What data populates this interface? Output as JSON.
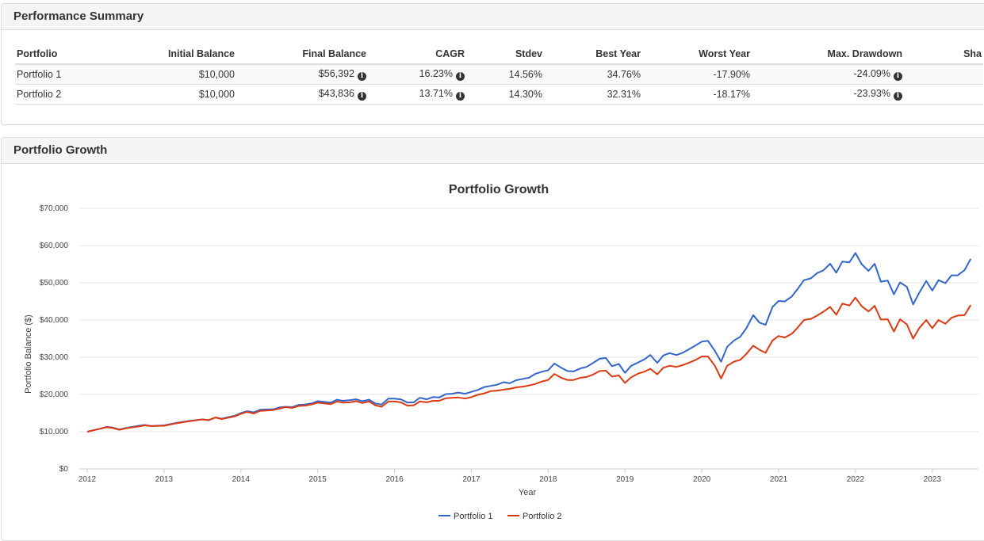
{
  "summary": {
    "title": "Performance Summary",
    "columns": [
      "Portfolio",
      "Initial Balance",
      "Final Balance",
      "CAGR",
      "Stdev",
      "Best Year",
      "Worst Year",
      "Max. Drawdown",
      "Sha"
    ],
    "rows": [
      {
        "portfolio": "Portfolio 1",
        "initial": "$10,000",
        "final": "$56,392",
        "cagr": "16.23%",
        "stdev": "14.56%",
        "best": "34.76%",
        "worst": "-17.90%",
        "drawdown": "-24.09%"
      },
      {
        "portfolio": "Portfolio 2",
        "initial": "$10,000",
        "final": "$43,836",
        "cagr": "13.71%",
        "stdev": "14.30%",
        "best": "32.31%",
        "worst": "-18.17%",
        "drawdown": "-23.93%"
      }
    ],
    "info_icon": "info-circle-icon"
  },
  "growth": {
    "title": "Portfolio Growth"
  },
  "colors": {
    "portfolio1": "#3366cc",
    "portfolio2": "#dc3912",
    "grid": "#e6e6e6"
  },
  "chart_data": {
    "type": "line",
    "title": "Portfolio Growth",
    "xlabel": "Year",
    "ylabel": "Portfolio Balance ($)",
    "ylim": [
      0,
      70000
    ],
    "yticks": [
      0,
      10000,
      20000,
      30000,
      40000,
      50000,
      60000,
      70000
    ],
    "ytick_labels": [
      "$0",
      "$10,000",
      "$20,000",
      "$30,000",
      "$40,000",
      "$50,000",
      "$60,000",
      "$70,000"
    ],
    "xlim": [
      2012,
      2023.58
    ],
    "xticks": [
      2012,
      2013,
      2014,
      2015,
      2016,
      2017,
      2018,
      2019,
      2020,
      2021,
      2022,
      2023
    ],
    "xtick_labels": [
      "2012",
      "2013",
      "2014",
      "2015",
      "2016",
      "2017",
      "2018",
      "2019",
      "2020",
      "2021",
      "2022",
      "2023"
    ],
    "legend_position": "bottom-center",
    "series": [
      {
        "name": "Portfolio 1",
        "points": [
          [
            2012,
            10000
          ],
          [
            2012.17,
            10800
          ],
          [
            2012.25,
            11300
          ],
          [
            2012.33,
            11100
          ],
          [
            2012.42,
            10600
          ],
          [
            2012.5,
            11000
          ],
          [
            2012.67,
            11600
          ],
          [
            2012.75,
            11800
          ],
          [
            2012.83,
            11500
          ],
          [
            2013,
            11700
          ],
          [
            2013.17,
            12400
          ],
          [
            2013.33,
            12900
          ],
          [
            2013.5,
            13300
          ],
          [
            2013.58,
            13100
          ],
          [
            2013.67,
            13800
          ],
          [
            2013.75,
            13500
          ],
          [
            2013.92,
            14300
          ],
          [
            2014,
            15000
          ],
          [
            2014.08,
            15500
          ],
          [
            2014.17,
            15200
          ],
          [
            2014.25,
            15900
          ],
          [
            2014.42,
            16000
          ],
          [
            2014.5,
            16500
          ],
          [
            2014.58,
            16700
          ],
          [
            2014.67,
            16600
          ],
          [
            2014.75,
            17200
          ],
          [
            2014.83,
            17300
          ],
          [
            2014.92,
            17600
          ],
          [
            2015,
            18200
          ],
          [
            2015.08,
            18000
          ],
          [
            2015.17,
            17800
          ],
          [
            2015.25,
            18600
          ],
          [
            2015.33,
            18300
          ],
          [
            2015.42,
            18500
          ],
          [
            2015.5,
            18700
          ],
          [
            2015.58,
            18200
          ],
          [
            2015.67,
            18600
          ],
          [
            2015.75,
            17600
          ],
          [
            2015.83,
            17300
          ],
          [
            2015.92,
            18900
          ],
          [
            2016,
            18900
          ],
          [
            2016.08,
            18700
          ],
          [
            2016.17,
            17800
          ],
          [
            2016.25,
            17900
          ],
          [
            2016.33,
            19100
          ],
          [
            2016.42,
            18700
          ],
          [
            2016.5,
            19300
          ],
          [
            2016.58,
            19200
          ],
          [
            2016.67,
            20100
          ],
          [
            2016.75,
            20200
          ],
          [
            2016.83,
            20500
          ],
          [
            2016.92,
            20200
          ],
          [
            2017,
            20700
          ],
          [
            2017.08,
            21200
          ],
          [
            2017.17,
            22000
          ],
          [
            2017.25,
            22300
          ],
          [
            2017.33,
            22600
          ],
          [
            2017.42,
            23300
          ],
          [
            2017.5,
            23000
          ],
          [
            2017.58,
            23800
          ],
          [
            2017.67,
            24200
          ],
          [
            2017.75,
            24500
          ],
          [
            2017.83,
            25500
          ],
          [
            2017.92,
            26100
          ],
          [
            2018,
            26500
          ],
          [
            2018.08,
            28300
          ],
          [
            2018.17,
            27200
          ],
          [
            2018.25,
            26300
          ],
          [
            2018.33,
            26200
          ],
          [
            2018.42,
            27000
          ],
          [
            2018.5,
            27400
          ],
          [
            2018.58,
            28400
          ],
          [
            2018.67,
            29600
          ],
          [
            2018.75,
            29800
          ],
          [
            2018.83,
            27600
          ],
          [
            2018.92,
            28200
          ],
          [
            2019,
            25800
          ],
          [
            2019.08,
            27700
          ],
          [
            2019.17,
            28600
          ],
          [
            2019.25,
            29400
          ],
          [
            2019.33,
            30600
          ],
          [
            2019.42,
            28500
          ],
          [
            2019.5,
            30500
          ],
          [
            2019.58,
            31100
          ],
          [
            2019.67,
            30600
          ],
          [
            2019.75,
            31200
          ],
          [
            2019.83,
            32100
          ],
          [
            2019.92,
            33200
          ],
          [
            2020,
            34200
          ],
          [
            2020.08,
            34400
          ],
          [
            2020.17,
            31700
          ],
          [
            2020.25,
            28800
          ],
          [
            2020.33,
            32800
          ],
          [
            2020.42,
            34500
          ],
          [
            2020.5,
            35500
          ],
          [
            2020.58,
            37800
          ],
          [
            2020.67,
            41300
          ],
          [
            2020.75,
            39300
          ],
          [
            2020.83,
            38700
          ],
          [
            2020.92,
            43500
          ],
          [
            2021,
            45100
          ],
          [
            2021.08,
            45000
          ],
          [
            2021.17,
            46300
          ],
          [
            2021.25,
            48400
          ],
          [
            2021.33,
            50700
          ],
          [
            2021.42,
            51200
          ],
          [
            2021.5,
            52600
          ],
          [
            2021.58,
            53300
          ],
          [
            2021.67,
            55100
          ],
          [
            2021.75,
            52700
          ],
          [
            2021.83,
            55700
          ],
          [
            2021.92,
            55500
          ],
          [
            2022,
            58000
          ],
          [
            2022.08,
            55000
          ],
          [
            2022.17,
            53200
          ],
          [
            2022.25,
            55100
          ],
          [
            2022.33,
            50300
          ],
          [
            2022.42,
            50600
          ],
          [
            2022.5,
            46900
          ],
          [
            2022.58,
            50100
          ],
          [
            2022.67,
            48900
          ],
          [
            2022.75,
            44200
          ],
          [
            2022.83,
            47300
          ],
          [
            2022.92,
            50500
          ],
          [
            2023,
            47900
          ],
          [
            2023.08,
            50700
          ],
          [
            2023.17,
            49900
          ],
          [
            2023.25,
            52000
          ],
          [
            2023.33,
            52000
          ],
          [
            2023.42,
            53400
          ],
          [
            2023.5,
            56400
          ]
        ]
      },
      {
        "name": "Portfolio 2",
        "points": [
          [
            2012,
            10000
          ],
          [
            2012.17,
            10800
          ],
          [
            2012.25,
            11200
          ],
          [
            2012.33,
            11000
          ],
          [
            2012.42,
            10500
          ],
          [
            2012.5,
            10900
          ],
          [
            2012.67,
            11400
          ],
          [
            2012.75,
            11700
          ],
          [
            2012.83,
            11500
          ],
          [
            2013,
            11600
          ],
          [
            2013.17,
            12300
          ],
          [
            2013.33,
            12800
          ],
          [
            2013.5,
            13300
          ],
          [
            2013.58,
            13100
          ],
          [
            2013.67,
            13800
          ],
          [
            2013.75,
            13400
          ],
          [
            2013.92,
            14100
          ],
          [
            2014,
            14800
          ],
          [
            2014.08,
            15300
          ],
          [
            2014.17,
            14900
          ],
          [
            2014.25,
            15600
          ],
          [
            2014.42,
            15800
          ],
          [
            2014.5,
            16200
          ],
          [
            2014.58,
            16600
          ],
          [
            2014.67,
            16400
          ],
          [
            2014.75,
            16900
          ],
          [
            2014.83,
            17000
          ],
          [
            2014.92,
            17300
          ],
          [
            2015,
            17800
          ],
          [
            2015.08,
            17600
          ],
          [
            2015.17,
            17400
          ],
          [
            2015.25,
            18100
          ],
          [
            2015.33,
            17800
          ],
          [
            2015.42,
            17900
          ],
          [
            2015.5,
            18200
          ],
          [
            2015.58,
            17700
          ],
          [
            2015.67,
            18100
          ],
          [
            2015.75,
            17100
          ],
          [
            2015.83,
            16700
          ],
          [
            2015.92,
            18100
          ],
          [
            2016,
            18100
          ],
          [
            2016.08,
            17900
          ],
          [
            2016.17,
            17000
          ],
          [
            2016.25,
            17100
          ],
          [
            2016.33,
            18100
          ],
          [
            2016.42,
            17900
          ],
          [
            2016.5,
            18300
          ],
          [
            2016.58,
            18300
          ],
          [
            2016.67,
            19000
          ],
          [
            2016.75,
            19100
          ],
          [
            2016.83,
            19200
          ],
          [
            2016.92,
            18900
          ],
          [
            2017,
            19300
          ],
          [
            2017.08,
            19900
          ],
          [
            2017.17,
            20300
          ],
          [
            2017.25,
            20900
          ],
          [
            2017.33,
            21000
          ],
          [
            2017.42,
            21300
          ],
          [
            2017.5,
            21500
          ],
          [
            2017.58,
            21900
          ],
          [
            2017.67,
            22100
          ],
          [
            2017.75,
            22400
          ],
          [
            2017.83,
            22800
          ],
          [
            2017.92,
            23500
          ],
          [
            2018,
            23900
          ],
          [
            2018.08,
            25500
          ],
          [
            2018.17,
            24500
          ],
          [
            2018.25,
            23900
          ],
          [
            2018.33,
            23900
          ],
          [
            2018.42,
            24500
          ],
          [
            2018.5,
            24700
          ],
          [
            2018.58,
            25300
          ],
          [
            2018.67,
            26300
          ],
          [
            2018.75,
            26400
          ],
          [
            2018.83,
            24800
          ],
          [
            2018.92,
            25100
          ],
          [
            2019,
            23100
          ],
          [
            2019.08,
            24600
          ],
          [
            2019.17,
            25600
          ],
          [
            2019.25,
            26100
          ],
          [
            2019.33,
            26900
          ],
          [
            2019.42,
            25400
          ],
          [
            2019.5,
            27200
          ],
          [
            2019.58,
            27700
          ],
          [
            2019.67,
            27400
          ],
          [
            2019.75,
            27900
          ],
          [
            2019.83,
            28500
          ],
          [
            2019.92,
            29300
          ],
          [
            2020,
            30200
          ],
          [
            2020.08,
            30200
          ],
          [
            2020.17,
            27700
          ],
          [
            2020.25,
            24300
          ],
          [
            2020.33,
            27700
          ],
          [
            2020.42,
            28800
          ],
          [
            2020.5,
            29300
          ],
          [
            2020.58,
            30900
          ],
          [
            2020.67,
            33100
          ],
          [
            2020.75,
            32000
          ],
          [
            2020.83,
            31200
          ],
          [
            2020.92,
            34500
          ],
          [
            2021,
            35700
          ],
          [
            2021.08,
            35300
          ],
          [
            2021.17,
            36300
          ],
          [
            2021.25,
            38000
          ],
          [
            2021.33,
            40000
          ],
          [
            2021.42,
            40300
          ],
          [
            2021.5,
            41200
          ],
          [
            2021.58,
            42200
          ],
          [
            2021.67,
            43500
          ],
          [
            2021.75,
            41400
          ],
          [
            2021.83,
            44400
          ],
          [
            2021.92,
            43900
          ],
          [
            2022,
            46000
          ],
          [
            2022.08,
            43700
          ],
          [
            2022.17,
            42300
          ],
          [
            2022.25,
            43800
          ],
          [
            2022.33,
            40100
          ],
          [
            2022.42,
            40200
          ],
          [
            2022.5,
            36900
          ],
          [
            2022.58,
            40200
          ],
          [
            2022.67,
            38800
          ],
          [
            2022.75,
            35000
          ],
          [
            2022.83,
            37800
          ],
          [
            2022.92,
            40000
          ],
          [
            2023,
            37800
          ],
          [
            2023.08,
            40000
          ],
          [
            2023.17,
            39000
          ],
          [
            2023.25,
            40600
          ],
          [
            2023.33,
            41200
          ],
          [
            2023.42,
            41300
          ],
          [
            2023.5,
            44000
          ]
        ]
      }
    ]
  }
}
